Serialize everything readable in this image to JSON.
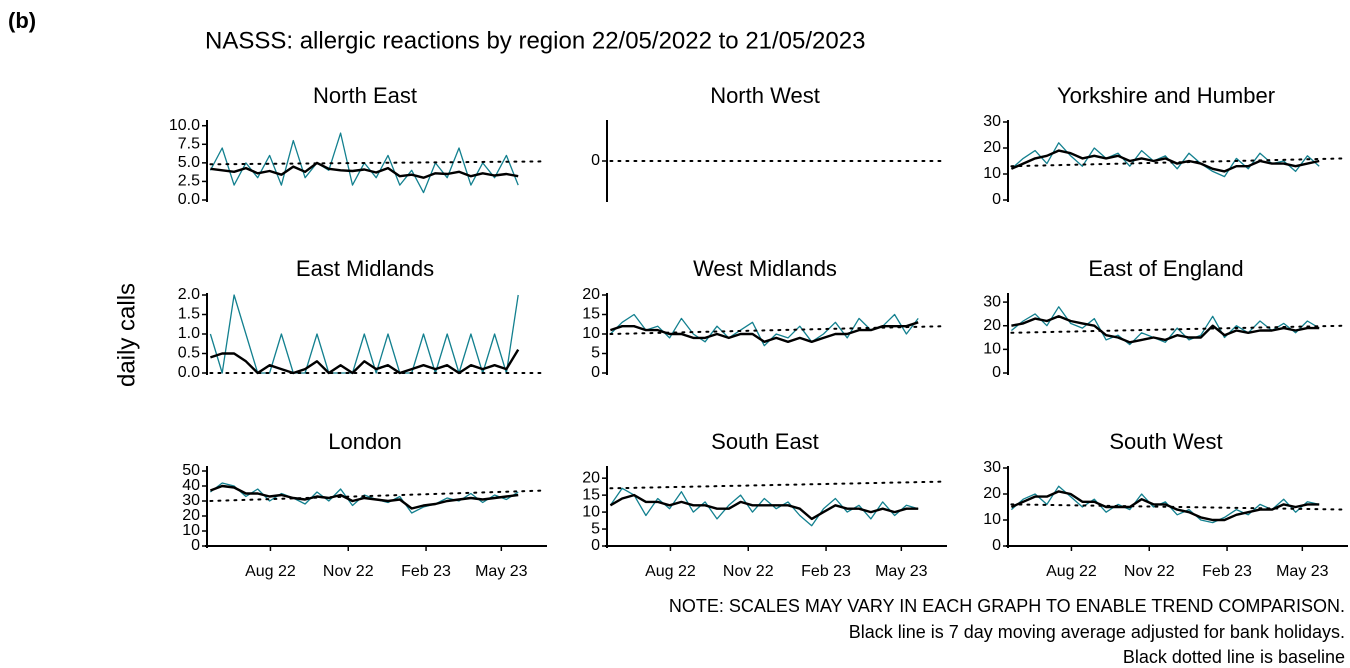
{
  "figure": {
    "label": "(b)",
    "title": "NASSS: allergic reactions by region 22/05/2022 to 21/05/2023",
    "ylabel": "daily calls",
    "notes": [
      "NOTE: SCALES MAY VARY IN EACH GRAPH TO ENABLE TREND COMPARISON.",
      "Black line is 7 day moving average adjusted for bank holidays.",
      "Black dotted line is baseline"
    ]
  },
  "chart_data": [
    {
      "type": "line",
      "title": "North East",
      "xlim": [
        "2022-05-18",
        "2023-06-24"
      ],
      "ylim": [
        0,
        10.5
      ],
      "yticks": [
        {
          "value": 0,
          "label": "0.0"
        },
        {
          "value": 2.5,
          "label": "2.5"
        },
        {
          "value": 5,
          "label": "5.0"
        },
        {
          "value": 7.5,
          "label": "7.5"
        },
        {
          "value": 10,
          "label": "10.0"
        }
      ],
      "x": [
        "2022-05-22",
        "2022-06-05",
        "2022-06-19",
        "2022-07-03",
        "2022-07-17",
        "2022-07-31",
        "2022-08-14",
        "2022-08-28",
        "2022-09-11",
        "2022-09-25",
        "2022-10-09",
        "2022-10-23",
        "2022-11-06",
        "2022-11-20",
        "2022-12-04",
        "2022-12-18",
        "2023-01-01",
        "2023-01-15",
        "2023-01-29",
        "2023-02-12",
        "2023-02-26",
        "2023-03-12",
        "2023-03-26",
        "2023-04-09",
        "2023-04-23",
        "2023-05-07",
        "2023-05-21"
      ],
      "series": [
        {
          "color": "#13808f",
          "values": [
            4,
            7,
            2,
            5,
            3,
            6,
            2,
            8,
            3,
            5,
            4,
            9,
            2,
            5,
            3,
            6,
            2,
            4,
            1,
            5,
            3,
            7,
            2,
            5,
            3,
            6,
            2
          ]
        },
        {
          "color": "#000000",
          "values": [
            4.2,
            4.0,
            3.8,
            4.3,
            3.6,
            3.9,
            3.4,
            4.5,
            3.8,
            5.0,
            4.2,
            4.0,
            3.9,
            4.1,
            3.7,
            4.3,
            3.2,
            3.4,
            3.0,
            3.6,
            3.5,
            3.8,
            3.2,
            3.6,
            3.3,
            3.5,
            3.2
          ]
        }
      ],
      "baseline": {
        "x": [
          "2022-05-22",
          "2023-06-21"
        ],
        "values": [
          4.8,
          5.2
        ]
      }
    },
    {
      "type": "line",
      "title": "North West",
      "xlim": [
        "2022-05-18",
        "2023-06-24"
      ],
      "ylim": [
        -1,
        1
      ],
      "yticks": [
        0
      ],
      "baseline": {
        "x": [
          "2022-05-22",
          "2023-06-21"
        ],
        "values": [
          0,
          0
        ]
      }
    },
    {
      "type": "line",
      "title": "Yorkshire and Humber",
      "xlim": [
        "2022-05-18",
        "2023-06-24"
      ],
      "ylim": [
        0,
        30
      ],
      "yticks": [
        0,
        10,
        20,
        30
      ],
      "x": [
        "2022-05-22",
        "2022-06-05",
        "2022-06-19",
        "2022-07-03",
        "2022-07-17",
        "2022-07-31",
        "2022-08-14",
        "2022-08-28",
        "2022-09-11",
        "2022-09-25",
        "2022-10-09",
        "2022-10-23",
        "2022-11-06",
        "2022-11-20",
        "2022-12-04",
        "2022-12-18",
        "2023-01-01",
        "2023-01-15",
        "2023-01-29",
        "2023-02-12",
        "2023-02-26",
        "2023-03-12",
        "2023-03-26",
        "2023-04-09",
        "2023-04-23",
        "2023-05-07",
        "2023-05-21"
      ],
      "series": [
        {
          "color": "#13808f",
          "values": [
            12,
            16,
            19,
            14,
            22,
            17,
            13,
            20,
            16,
            18,
            13,
            19,
            15,
            17,
            12,
            18,
            14,
            11,
            9,
            16,
            12,
            18,
            14,
            15,
            11,
            17,
            13
          ]
        },
        {
          "color": "#000000",
          "values": [
            12,
            14,
            16,
            17,
            19,
            18,
            16,
            17,
            16,
            17,
            15,
            16,
            15,
            16,
            14,
            15,
            14,
            12,
            11,
            13,
            13,
            15,
            14,
            14,
            13,
            14,
            15
          ]
        }
      ],
      "baseline": {
        "x": [
          "2022-05-22",
          "2023-06-21"
        ],
        "values": [
          13,
          16
        ]
      }
    },
    {
      "type": "line",
      "title": "East Midlands",
      "xlim": [
        "2022-05-18",
        "2023-06-24"
      ],
      "ylim": [
        0,
        2
      ],
      "yticks": [
        {
          "value": 0,
          "label": "0.0"
        },
        {
          "value": 0.5,
          "label": "0.5"
        },
        {
          "value": 1,
          "label": "1.0"
        },
        {
          "value": 1.5,
          "label": "1.5"
        },
        {
          "value": 2,
          "label": "2.0"
        }
      ],
      "x": [
        "2022-05-22",
        "2022-06-05",
        "2022-06-19",
        "2022-07-03",
        "2022-07-17",
        "2022-07-31",
        "2022-08-14",
        "2022-08-28",
        "2022-09-11",
        "2022-09-25",
        "2022-10-09",
        "2022-10-23",
        "2022-11-06",
        "2022-11-20",
        "2022-12-04",
        "2022-12-18",
        "2023-01-01",
        "2023-01-15",
        "2023-01-29",
        "2023-02-12",
        "2023-02-26",
        "2023-03-12",
        "2023-03-26",
        "2023-04-09",
        "2023-04-23",
        "2023-05-07",
        "2023-05-21"
      ],
      "series": [
        {
          "color": "#13808f",
          "values": [
            1,
            0,
            2,
            1,
            0,
            0,
            1,
            0,
            0,
            1,
            0,
            0,
            0,
            1,
            0,
            1,
            0,
            0,
            1,
            0,
            1,
            0,
            1,
            0,
            1,
            0,
            2
          ]
        },
        {
          "color": "#000000",
          "values": [
            0.4,
            0.5,
            0.5,
            0.3,
            0.0,
            0.2,
            0.1,
            0.0,
            0.1,
            0.3,
            0.0,
            0.2,
            0.0,
            0.3,
            0.1,
            0.2,
            0.0,
            0.1,
            0.2,
            0.1,
            0.2,
            0.0,
            0.2,
            0.1,
            0.2,
            0.1,
            0.6
          ]
        }
      ],
      "baseline": {
        "x": [
          "2022-05-22",
          "2023-06-21"
        ],
        "values": [
          0,
          0
        ]
      }
    },
    {
      "type": "line",
      "title": "West Midlands",
      "xlim": [
        "2022-05-18",
        "2023-06-24"
      ],
      "ylim": [
        0,
        20
      ],
      "yticks": [
        0,
        5,
        10,
        15,
        20
      ],
      "x": [
        "2022-05-22",
        "2022-06-05",
        "2022-06-19",
        "2022-07-03",
        "2022-07-17",
        "2022-07-31",
        "2022-08-14",
        "2022-08-28",
        "2022-09-11",
        "2022-09-25",
        "2022-10-09",
        "2022-10-23",
        "2022-11-06",
        "2022-11-20",
        "2022-12-04",
        "2022-12-18",
        "2023-01-01",
        "2023-01-15",
        "2023-01-29",
        "2023-02-12",
        "2023-02-26",
        "2023-03-12",
        "2023-03-26",
        "2023-04-09",
        "2023-04-23",
        "2023-05-07",
        "2023-05-21"
      ],
      "series": [
        {
          "color": "#13808f",
          "values": [
            10,
            13,
            15,
            11,
            12,
            9,
            14,
            10,
            8,
            12,
            9,
            11,
            13,
            7,
            10,
            9,
            12,
            8,
            10,
            13,
            9,
            14,
            11,
            12,
            15,
            10,
            14
          ]
        },
        {
          "color": "#000000",
          "values": [
            11,
            12,
            12,
            11,
            11,
            10,
            10,
            9,
            9,
            10,
            9,
            10,
            10,
            8,
            9,
            8,
            9,
            8,
            9,
            10,
            10,
            11,
            11,
            12,
            12,
            12,
            13
          ]
        }
      ],
      "baseline": {
        "x": [
          "2022-05-22",
          "2023-06-21"
        ],
        "values": [
          10,
          12
        ]
      }
    },
    {
      "type": "line",
      "title": "East of England",
      "xlim": [
        "2022-05-18",
        "2023-06-24"
      ],
      "ylim": [
        0,
        33
      ],
      "yticks": [
        0,
        10,
        20,
        30
      ],
      "x": [
        "2022-05-22",
        "2022-06-05",
        "2022-06-19",
        "2022-07-03",
        "2022-07-17",
        "2022-07-31",
        "2022-08-14",
        "2022-08-28",
        "2022-09-11",
        "2022-09-25",
        "2022-10-09",
        "2022-10-23",
        "2022-11-06",
        "2022-11-20",
        "2022-12-04",
        "2022-12-18",
        "2023-01-01",
        "2023-01-15",
        "2023-01-29",
        "2023-02-12",
        "2023-02-26",
        "2023-03-12",
        "2023-03-26",
        "2023-04-09",
        "2023-04-23",
        "2023-05-07",
        "2023-05-21"
      ],
      "series": [
        {
          "color": "#13808f",
          "values": [
            18,
            22,
            25,
            20,
            28,
            21,
            19,
            23,
            14,
            16,
            12,
            17,
            15,
            13,
            19,
            14,
            16,
            24,
            15,
            20,
            17,
            22,
            18,
            21,
            17,
            22,
            19
          ]
        },
        {
          "color": "#000000",
          "values": [
            20,
            21,
            23,
            22,
            24,
            22,
            21,
            20,
            16,
            15,
            13,
            14,
            15,
            14,
            16,
            15,
            15,
            20,
            16,
            18,
            17,
            18,
            18,
            19,
            18,
            19,
            19
          ]
        }
      ],
      "baseline": {
        "x": [
          "2022-05-22",
          "2023-06-21"
        ],
        "values": [
          17,
          20
        ]
      }
    },
    {
      "type": "line",
      "title": "London",
      "xlim": [
        "2022-05-18",
        "2023-06-24"
      ],
      "ylim": [
        0,
        52
      ],
      "yticks": [
        0,
        10,
        20,
        30,
        40,
        50
      ],
      "xticks": [
        {
          "value": "2022-08-01",
          "label": "Aug 22"
        },
        {
          "value": "2022-11-01",
          "label": "Nov 22"
        },
        {
          "value": "2023-02-01",
          "label": "Feb 23"
        },
        {
          "value": "2023-05-01",
          "label": "May 23"
        }
      ],
      "x": [
        "2022-05-22",
        "2022-06-05",
        "2022-06-19",
        "2022-07-03",
        "2022-07-17",
        "2022-07-31",
        "2022-08-14",
        "2022-08-28",
        "2022-09-11",
        "2022-09-25",
        "2022-10-09",
        "2022-10-23",
        "2022-11-06",
        "2022-11-20",
        "2022-12-04",
        "2022-12-18",
        "2023-01-01",
        "2023-01-15",
        "2023-01-29",
        "2023-02-12",
        "2023-02-26",
        "2023-03-12",
        "2023-03-26",
        "2023-04-09",
        "2023-04-23",
        "2023-05-07",
        "2023-05-21"
      ],
      "series": [
        {
          "color": "#13808f",
          "values": [
            36,
            42,
            40,
            33,
            38,
            30,
            35,
            32,
            28,
            36,
            30,
            38,
            27,
            34,
            31,
            29,
            33,
            22,
            26,
            28,
            32,
            30,
            35,
            29,
            34,
            31,
            36
          ]
        },
        {
          "color": "#000000",
          "values": [
            37,
            40,
            39,
            35,
            35,
            33,
            34,
            32,
            31,
            33,
            32,
            34,
            30,
            32,
            31,
            30,
            31,
            25,
            27,
            28,
            30,
            31,
            32,
            31,
            32,
            33,
            34
          ]
        }
      ],
      "baseline": {
        "x": [
          "2022-05-22",
          "2023-06-21"
        ],
        "values": [
          30,
          37
        ]
      }
    },
    {
      "type": "line",
      "title": "South East",
      "xlim": [
        "2022-05-18",
        "2023-06-24"
      ],
      "ylim": [
        0,
        23
      ],
      "yticks": [
        0,
        5,
        10,
        15,
        20
      ],
      "xticks": [
        {
          "value": "2022-08-01",
          "label": "Aug 22"
        },
        {
          "value": "2022-11-01",
          "label": "Nov 22"
        },
        {
          "value": "2023-02-01",
          "label": "Feb 23"
        },
        {
          "value": "2023-05-01",
          "label": "May 23"
        }
      ],
      "x": [
        "2022-05-22",
        "2022-06-05",
        "2022-06-19",
        "2022-07-03",
        "2022-07-17",
        "2022-07-31",
        "2022-08-14",
        "2022-08-28",
        "2022-09-11",
        "2022-09-25",
        "2022-10-09",
        "2022-10-23",
        "2022-11-06",
        "2022-11-20",
        "2022-12-04",
        "2022-12-18",
        "2023-01-01",
        "2023-01-15",
        "2023-01-29",
        "2023-02-12",
        "2023-02-26",
        "2023-03-12",
        "2023-03-26",
        "2023-04-09",
        "2023-04-23",
        "2023-05-07",
        "2023-05-21"
      ],
      "series": [
        {
          "color": "#13808f",
          "values": [
            12,
            17,
            15,
            9,
            14,
            11,
            16,
            10,
            13,
            8,
            12,
            15,
            10,
            14,
            11,
            13,
            9,
            6,
            11,
            14,
            10,
            12,
            8,
            13,
            9,
            12,
            11
          ]
        },
        {
          "color": "#000000",
          "values": [
            12,
            14,
            15,
            13,
            13,
            12,
            13,
            12,
            12,
            11,
            11,
            13,
            12,
            12,
            12,
            12,
            11,
            8,
            10,
            12,
            11,
            11,
            10,
            11,
            10,
            11,
            11
          ]
        }
      ],
      "baseline": {
        "x": [
          "2022-05-22",
          "2023-06-21"
        ],
        "values": [
          17,
          19
        ]
      }
    },
    {
      "type": "line",
      "title": "South West",
      "xlim": [
        "2022-05-18",
        "2023-06-24"
      ],
      "ylim": [
        0,
        30
      ],
      "yticks": [
        0,
        10,
        20,
        30
      ],
      "xticks": [
        {
          "value": "2022-08-01",
          "label": "Aug 22"
        },
        {
          "value": "2022-11-01",
          "label": "Nov 22"
        },
        {
          "value": "2023-02-01",
          "label": "Feb 23"
        },
        {
          "value": "2023-05-01",
          "label": "May 23"
        }
      ],
      "x": [
        "2022-05-22",
        "2022-06-05",
        "2022-06-19",
        "2022-07-03",
        "2022-07-17",
        "2022-07-31",
        "2022-08-14",
        "2022-08-28",
        "2022-09-11",
        "2022-09-25",
        "2022-10-09",
        "2022-10-23",
        "2022-11-06",
        "2022-11-20",
        "2022-12-04",
        "2022-12-18",
        "2023-01-01",
        "2023-01-15",
        "2023-01-29",
        "2023-02-12",
        "2023-02-26",
        "2023-03-12",
        "2023-03-26",
        "2023-04-09",
        "2023-04-23",
        "2023-05-07",
        "2023-05-21"
      ],
      "series": [
        {
          "color": "#13808f",
          "values": [
            14,
            18,
            20,
            16,
            23,
            19,
            15,
            18,
            13,
            16,
            14,
            20,
            15,
            17,
            12,
            14,
            10,
            9,
            11,
            14,
            12,
            16,
            14,
            18,
            13,
            17,
            16
          ]
        },
        {
          "color": "#000000",
          "values": [
            15,
            17,
            19,
            19,
            21,
            20,
            17,
            17,
            15,
            15,
            15,
            18,
            16,
            16,
            14,
            13,
            11,
            10,
            10,
            12,
            13,
            14,
            14,
            16,
            15,
            16,
            16
          ]
        }
      ],
      "baseline": {
        "x": [
          "2022-05-22",
          "2023-06-21"
        ],
        "values": [
          16,
          14
        ]
      }
    }
  ]
}
